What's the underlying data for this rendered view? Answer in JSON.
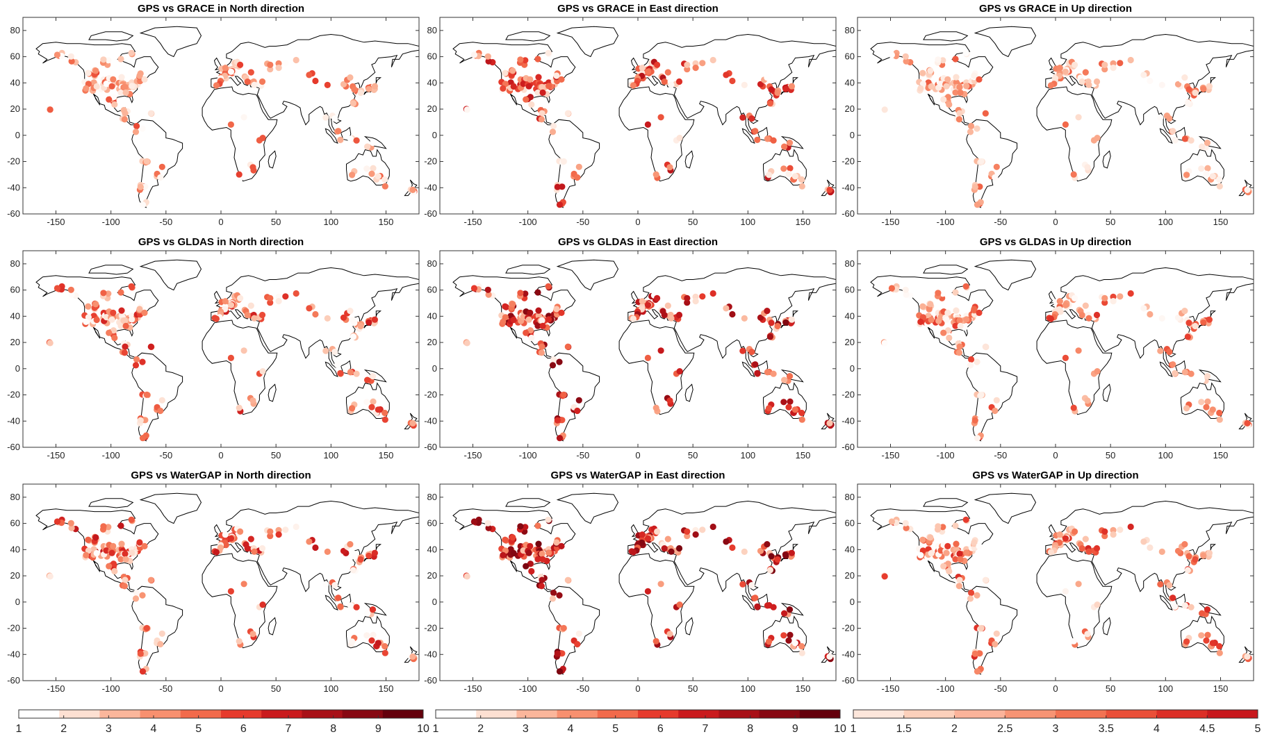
{
  "figure": {
    "xticks": [
      -150,
      -100,
      -50,
      0,
      50,
      100,
      150
    ],
    "yticks": [
      80,
      60,
      40,
      20,
      0,
      -20,
      -40,
      -60
    ],
    "xlim": [
      -180,
      180
    ],
    "ylim": [
      -60,
      90
    ],
    "panels": [
      {
        "title": "GPS vs GRACE in North direction",
        "col": 0,
        "row": 0,
        "density": 0.3
      },
      {
        "title": "GPS vs GRACE in East direction",
        "col": 1,
        "row": 0,
        "density": 0.55
      },
      {
        "title": "GPS vs GRACE in Up direction",
        "col": 2,
        "row": 0,
        "density": 0.2
      },
      {
        "title": "GPS vs GLDAS in North direction",
        "col": 0,
        "row": 1,
        "density": 0.45
      },
      {
        "title": "GPS vs GLDAS in East direction",
        "col": 1,
        "row": 1,
        "density": 0.8
      },
      {
        "title": "GPS vs GLDAS in Up direction",
        "col": 2,
        "row": 1,
        "density": 0.35
      },
      {
        "title": "GPS vs WaterGAP in North direction",
        "col": 0,
        "row": 2,
        "density": 0.5
      },
      {
        "title": "GPS vs WaterGAP in East direction",
        "col": 1,
        "row": 2,
        "density": 0.85
      },
      {
        "title": "GPS vs WaterGAP in Up direction",
        "col": 2,
        "row": 2,
        "density": 0.4
      }
    ],
    "colorbars": [
      {
        "labels": [
          "1",
          "2",
          "3",
          "4",
          "5",
          "6",
          "7",
          "8",
          "9",
          "10"
        ],
        "colors": [
          "#ffffff",
          "#fde0d2",
          "#fbb69b",
          "#f8906f",
          "#f26a4b",
          "#e63a2c",
          "#ca1a1d",
          "#a81017",
          "#870812",
          "#64000c"
        ]
      },
      {
        "labels": [
          "1",
          "2",
          "3",
          "4",
          "5",
          "6",
          "7",
          "8",
          "9",
          "10"
        ],
        "colors": [
          "#ffffff",
          "#fde0d2",
          "#fbb69b",
          "#f8906f",
          "#f26a4b",
          "#e63a2c",
          "#ca1a1d",
          "#a81017",
          "#870812",
          "#64000c"
        ]
      },
      {
        "labels": [
          "1",
          "1.5",
          "2",
          "2.5",
          "3",
          "3.5",
          "4",
          "4.5",
          "5"
        ],
        "colors": [
          "#fde6db",
          "#fcd0bb",
          "#fbb39a",
          "#f79474",
          "#f27252",
          "#ea4f38",
          "#dc2e26",
          "#c8181d"
        ]
      }
    ]
  }
}
